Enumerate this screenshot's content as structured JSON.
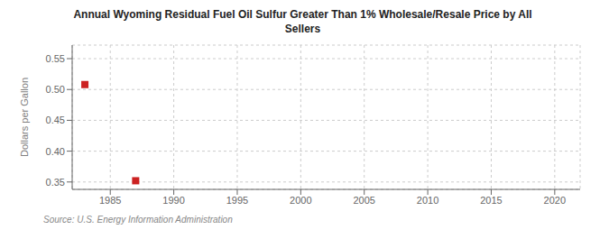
{
  "chart_data": {
    "type": "scatter",
    "title": "Annual Wyoming Residual Fuel Oil Sulfur Greater Than 1% Wholesale/Resale Price by All\nSellers",
    "ylabel": "Dollars per Gallon",
    "annotations": [
      "Source: U.S. Energy Information Administration"
    ],
    "x": [
      1983,
      1987
    ],
    "values": [
      0.508,
      0.352
    ],
    "color": "#cc2222",
    "marker": "square",
    "xlim": [
      1982,
      2022
    ],
    "ylim": [
      0.338,
      0.572
    ],
    "xticks": [
      1985,
      1990,
      1995,
      2000,
      2005,
      2010,
      2015,
      2020
    ],
    "yticks": [
      0.35,
      {
        "value": 0.4,
        "label": "0.40"
      },
      0.45,
      {
        "value": 0.5,
        "label": "0.50"
      },
      0.55
    ],
    "grid": true
  }
}
